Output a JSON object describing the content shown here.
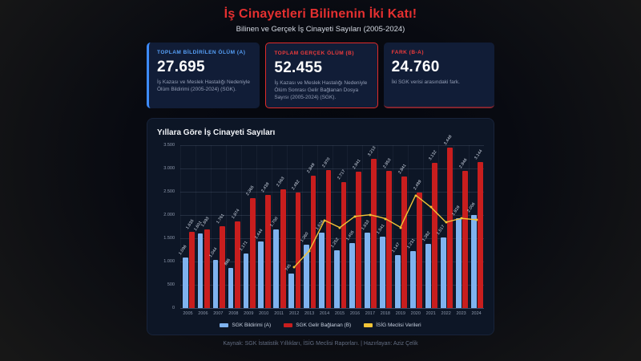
{
  "header": {
    "title": "İş Cinayetleri Bilinenin İki Katı!",
    "subtitle": "Bilinen ve Gerçek İş Cinayeti Sayıları (2005-2024)"
  },
  "cards": [
    {
      "label": "TOPLAM BİLDİRİLEN ÖLÜM (A)",
      "value": "27.695",
      "desc": "İş Kazası ve Meslek Hastalığı Nedeniyle Ölüm Bildirimi (2005-2024) (SGK).",
      "accent": "#3d8bfd"
    },
    {
      "label": "TOPLAM GERÇEK ÖLÜM (B)",
      "value": "52.455",
      "desc": "İş Kazası ve Meslek Hastalığı Nedeniyle Ölüm Sonrası Gelir Bağlanan Dosya Sayısı (2005-2024) (SGK).",
      "accent": "#e02b2b"
    },
    {
      "label": "FARK (B-A)",
      "value": "24.760",
      "desc": "İki SGK verisi arasındaki fark.",
      "accent": "#e02b2b"
    }
  ],
  "chart": {
    "title": "Yıllara Göre İş Cinayeti Sayıları"
  },
  "chart_data": {
    "type": "bar",
    "title": "Yıllara Göre İş Cinayeti Sayıları",
    "categories": [
      2005,
      2006,
      2007,
      2008,
      2009,
      2010,
      2011,
      2012,
      2013,
      2014,
      2015,
      2016,
      2017,
      2018,
      2019,
      2020,
      2021,
      2022,
      2023,
      2024
    ],
    "series": [
      {
        "name": "SGK Bildirimi (A)",
        "type": "bar",
        "color": "#7fb3ef",
        "values": [
          1096,
          1601,
          1044,
          866,
          1171,
          1444,
          1700,
          745,
          1360,
          1626,
          1252,
          1405,
          1633,
          1541,
          1147,
          1231,
          1382,
          1517,
          1929,
          2006
        ]
      },
      {
        "name": "SGK Gelir Bağlanan (B)",
        "type": "bar",
        "color": "#c81e1e",
        "values": [
          1635,
          1693,
          1761,
          1874,
          2365,
          2439,
          2563,
          2482,
          2849,
          2970,
          2717,
          2941,
          3213,
          2953,
          2841,
          2489,
          3132,
          3448,
          2946,
          3144
        ]
      },
      {
        "name": "İSİG Meclisi Verileri",
        "type": "line",
        "color": "#f2c437",
        "values": [
          null,
          null,
          null,
          null,
          null,
          null,
          null,
          878,
          1235,
          1886,
          1730,
          1970,
          2006,
          1923,
          1736,
          2427,
          2170,
          1843,
          1929,
          1897
        ]
      }
    ],
    "ylim": [
      0,
      3500
    ],
    "yticks": [
      "3.500",
      "3.000",
      "2.500",
      "2.000",
      "1.500",
      "1.000",
      "500",
      "0"
    ],
    "grid": true,
    "legend_position": "bottom"
  },
  "footer": {
    "text": "Kaynak: SGK İstatistik Yıllıkları, İSİG Meclisi Raporları. | Hazırlayan: Aziz Çelik"
  }
}
